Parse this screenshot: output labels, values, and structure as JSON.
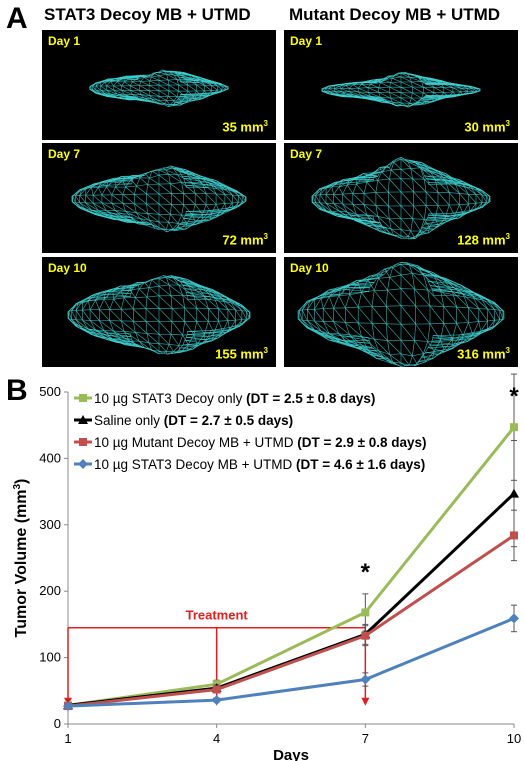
{
  "panel_a": {
    "letter": "A",
    "columns": [
      {
        "title": "STAT3 Decoy MB + UTMD",
        "tiles": [
          {
            "day": "Day 1",
            "volume": "35 mm",
            "sup": "3"
          },
          {
            "day": "Day 7",
            "volume": "72 mm",
            "sup": "3"
          },
          {
            "day": "Day 10",
            "volume": "155 mm",
            "sup": "3"
          }
        ]
      },
      {
        "title": "Mutant Decoy MB + UTMD",
        "tiles": [
          {
            "day": "Day 1",
            "volume": "30 mm",
            "sup": "3"
          },
          {
            "day": "Day 7",
            "volume": "128 mm",
            "sup": "3"
          },
          {
            "day": "Day 10",
            "volume": "316 mm",
            "sup": "3"
          }
        ]
      }
    ],
    "mesh_color": "#3fd0d0",
    "label_color": "#ffff00"
  },
  "panel_b": {
    "letter": "B",
    "treatment_label": "Treatment",
    "treatment_color": "#e02020",
    "significance_marks": [
      {
        "x": 7,
        "label": "*"
      },
      {
        "x": 10,
        "label": "*"
      }
    ]
  },
  "chart_data": {
    "type": "line",
    "xlabel": "Days",
    "ylabel": "Tumor Volume (mm",
    "ylabel_sup": "3",
    "ylabel_close": ")",
    "x": [
      1,
      4,
      7,
      10
    ],
    "xticks": [
      "1",
      "4",
      "7",
      "10"
    ],
    "ylim": [
      0,
      500
    ],
    "yticks": [
      "0",
      "100",
      "200",
      "300",
      "400",
      "500"
    ],
    "grid": false,
    "legend_position": "top-left",
    "series": [
      {
        "name": "10 µg STAT3 Decoy only",
        "dt": "(DT = 2.5 ± 0.8 days)",
        "color": "#9bbb59",
        "marker": "square",
        "values": [
          28,
          60,
          168,
          447
        ],
        "errors": [
          3,
          6,
          28,
          80
        ]
      },
      {
        "name": "Saline only",
        "dt": "(DT = 2.7 ± 0.5 days)",
        "color": "#000000",
        "marker": "triangle",
        "values": [
          28,
          54,
          135,
          347
        ],
        "errors": [
          3,
          5,
          15,
          80
        ]
      },
      {
        "name": "10 µg Mutant Decoy MB + UTMD",
        "dt": "(DT = 2.9 ± 0.8 days)",
        "color": "#c0504d",
        "marker": "square",
        "values": [
          27,
          52,
          133,
          284
        ],
        "errors": [
          3,
          5,
          15,
          38
        ]
      },
      {
        "name": "10 µg STAT3 Decoy MB + UTMD",
        "dt": "(DT = 4.6 ± 1.6 days)",
        "color": "#4f81bd",
        "marker": "diamond",
        "values": [
          27,
          36,
          67,
          159
        ],
        "errors": [
          2,
          3,
          10,
          20
        ]
      }
    ]
  }
}
